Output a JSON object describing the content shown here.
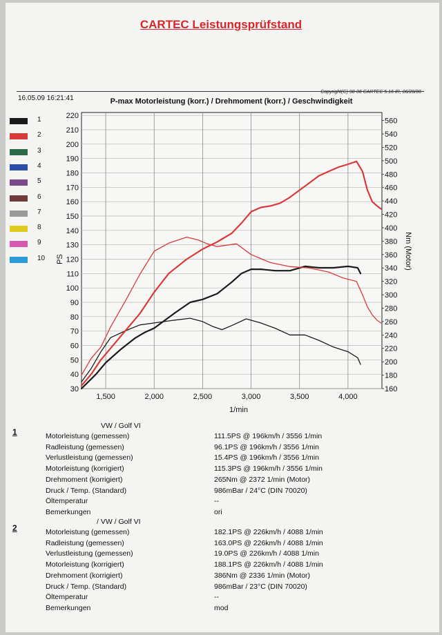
{
  "header": {
    "title": "CARTEC Leistungsprüfstand",
    "datetime": "16.05.09 16:21:41",
    "copyright": "Copyright(C) 98-06 CARTEC 5.16 IR, 06/28/06"
  },
  "legend": [
    {
      "label": "1",
      "color": "#1a1a1a"
    },
    {
      "label": "2",
      "color": "#d83a3a"
    },
    {
      "label": "3",
      "color": "#2e6b4a"
    },
    {
      "label": "4",
      "color": "#2a4fa8"
    },
    {
      "label": "5",
      "color": "#7a4a8a"
    },
    {
      "label": "6",
      "color": "#6e3a3a"
    },
    {
      "label": "7",
      "color": "#9a9a9a"
    },
    {
      "label": "8",
      "color": "#e0cc1e"
    },
    {
      "label": "9",
      "color": "#d85ab0"
    },
    {
      "label": "10",
      "color": "#2a9ad8"
    }
  ],
  "chart_data": {
    "type": "line",
    "title": "P-max Motorleistung (korr.) / Drehmoment (korr.) / Geschwindigkeit",
    "xlabel": "1/min",
    "ylabel_left": "PS",
    "ylabel_right": "Nm (Motor)",
    "xlim": [
      1250,
      4350
    ],
    "ylim_left": [
      30,
      222
    ],
    "ylim_right": [
      160,
      572
    ],
    "x_ticks": [
      1500,
      2000,
      2500,
      3000,
      3500,
      4000
    ],
    "x_tick_labels": [
      "1,500",
      "2,000",
      "2,500",
      "3,000",
      "3,500",
      "4,000"
    ],
    "y_left_ticks": [
      30,
      40,
      50,
      60,
      70,
      80,
      90,
      100,
      110,
      120,
      130,
      140,
      150,
      160,
      170,
      180,
      190,
      200,
      210,
      220
    ],
    "y_right_ticks": [
      160,
      180,
      200,
      220,
      240,
      260,
      280,
      300,
      320,
      340,
      360,
      380,
      400,
      420,
      440,
      460,
      480,
      500,
      520,
      540,
      560
    ],
    "grid": true,
    "series": [
      {
        "name": "1",
        "axis": "left",
        "color": "#1a1a1a",
        "width": 2.2,
        "x": [
          1250,
          1400,
          1500,
          1650,
          1800,
          1900,
          2000,
          2200,
          2372,
          2500,
          2650,
          2800,
          2900,
          3000,
          3100,
          3250,
          3400,
          3556,
          3700,
          3850,
          4000,
          4100,
          4130
        ],
        "y": [
          30,
          40,
          48,
          57,
          65,
          69,
          72,
          82,
          90,
          92,
          96,
          104,
          110,
          113,
          113,
          112,
          112,
          115,
          114,
          114,
          115,
          114,
          110
        ]
      },
      {
        "name": "1",
        "axis": "right",
        "color": "#1a1a1a",
        "width": 1.3,
        "x": [
          1250,
          1350,
          1450,
          1550,
          1700,
          1850,
          2000,
          2200,
          2372,
          2500,
          2600,
          2700,
          2800,
          2950,
          3100,
          3250,
          3400,
          3556,
          3700,
          3850,
          4000,
          4100,
          4130
        ],
        "y": [
          170,
          190,
          215,
          236,
          246,
          255,
          258,
          262,
          265,
          260,
          253,
          248,
          254,
          264,
          258,
          250,
          240,
          240,
          232,
          222,
          215,
          206,
          196
        ]
      },
      {
        "name": "2",
        "axis": "left",
        "color": "#d83a3a",
        "width": 2.2,
        "x": [
          1250,
          1350,
          1450,
          1550,
          1700,
          1850,
          2000,
          2150,
          2336,
          2500,
          2650,
          2800,
          2900,
          3000,
          3100,
          3200,
          3300,
          3400,
          3500,
          3600,
          3700,
          3800,
          3900,
          4000,
          4088,
          4150,
          4200,
          4250,
          4300,
          4340
        ],
        "y": [
          32,
          40,
          50,
          58,
          70,
          82,
          97,
          110,
          120,
          127,
          132,
          138,
          145,
          153,
          156,
          157,
          159,
          163,
          168,
          173,
          178,
          181,
          184,
          186,
          188,
          181,
          168,
          160,
          157,
          155
        ]
      },
      {
        "name": "2",
        "axis": "right",
        "color": "#d83a3a",
        "width": 1.3,
        "x": [
          1250,
          1350,
          1450,
          1550,
          1700,
          1850,
          2000,
          2150,
          2336,
          2450,
          2550,
          2650,
          2750,
          2850,
          3000,
          3200,
          3400,
          3600,
          3800,
          3950,
          4088,
          4150,
          4200,
          4250,
          4300,
          4340
        ],
        "y": [
          180,
          205,
          222,
          252,
          290,
          330,
          365,
          377,
          386,
          382,
          376,
          372,
          374,
          376,
          360,
          348,
          342,
          340,
          334,
          325,
          320,
          300,
          282,
          270,
          262,
          258
        ]
      }
    ]
  },
  "results": [
    {
      "num": "1",
      "vehicle": "VW / Golf VI",
      "rows": [
        {
          "label": "Motorleistung (gemessen)",
          "value": "111.5PS @ 196km/h / 3556 1/min"
        },
        {
          "label": "Radleistung (gemessen)",
          "value": "96.1PS @ 196km/h / 3556 1/min"
        },
        {
          "label": "Verlustleistung (gemessen)",
          "value": "15.4PS @ 196km/h / 3556 1/min"
        },
        {
          "label": "Motorleistung (korrigiert)",
          "value": "115.3PS @ 196km/h / 3556 1/min"
        },
        {
          "label": "Drehmoment (korrigiert)",
          "value": "265Nm @ 2372 1/min (Motor)"
        },
        {
          "label": "Druck / Temp. (Standard)",
          "value": "986mBar / 24°C    (DIN 70020)"
        },
        {
          "label": "Öltemperatur",
          "value": "--"
        },
        {
          "label": "Bemerkungen",
          "value": "ori"
        }
      ]
    },
    {
      "num": "2",
      "vehicle": "/ VW / Golf VI",
      "rows": [
        {
          "label": "Motorleistung (gemessen)",
          "value": "182.1PS @ 226km/h / 4088 1/min"
        },
        {
          "label": "Radleistung (gemessen)",
          "value": "163.0PS @ 226km/h / 4088 1/min"
        },
        {
          "label": "Verlustleistung (gemessen)",
          "value": "19.0PS @ 226km/h / 4088 1/min"
        },
        {
          "label": "Motorleistung (korrigiert)",
          "value": "188.1PS @ 226km/h / 4088 1/min"
        },
        {
          "label": "Drehmoment (korrigiert)",
          "value": "386Nm @ 2336 1/min (Motor)"
        },
        {
          "label": "Druck / Temp. (Standard)",
          "value": "986mBar / 23°C    (DIN 70020)"
        },
        {
          "label": "Öltemperatur",
          "value": "--"
        },
        {
          "label": "Bemerkungen",
          "value": "mod"
        }
      ]
    }
  ]
}
